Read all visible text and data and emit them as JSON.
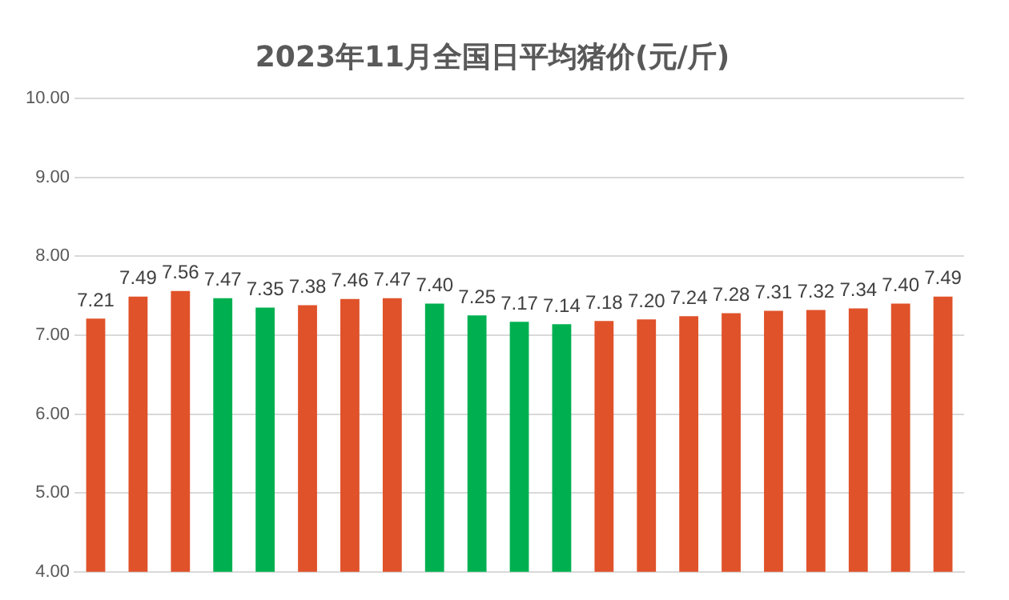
{
  "chart_data": {
    "type": "bar",
    "title": "2023年11月全国日平均猪价(元/斤)",
    "categories": [
      null,
      null,
      null,
      null,
      null,
      null,
      null,
      null,
      null,
      null,
      null,
      null,
      null,
      null,
      null,
      null,
      null,
      null,
      null,
      null,
      null
    ],
    "values": [
      7.21,
      7.49,
      7.56,
      7.47,
      7.35,
      7.38,
      7.46,
      7.47,
      7.4,
      7.25,
      7.17,
      7.14,
      7.18,
      7.2,
      7.24,
      7.28,
      7.31,
      7.32,
      7.34,
      7.4,
      7.49
    ],
    "colors": [
      "#e0522a",
      "#e0522a",
      "#e0522a",
      "#00b050",
      "#00b050",
      "#e0522a",
      "#e0522a",
      "#e0522a",
      "#00b050",
      "#00b050",
      "#00b050",
      "#00b050",
      "#e0522a",
      "#e0522a",
      "#e0522a",
      "#e0522a",
      "#e0522a",
      "#e0522a",
      "#e0522a",
      "#e0522a",
      "#e0522a"
    ],
    "ylim": [
      4,
      10
    ],
    "yticks": [
      {
        "value": 4,
        "label": "4.00"
      },
      {
        "value": 5,
        "label": "5.00"
      },
      {
        "value": 6,
        "label": "6.00"
      },
      {
        "value": 7,
        "label": "7.00"
      },
      {
        "value": 8,
        "label": "8.00"
      },
      {
        "value": 9,
        "label": "9.00"
      },
      {
        "value": 10,
        "label": "10.00"
      }
    ],
    "value_labels": [
      "7.21",
      "7.49",
      "7.56",
      "7.47",
      "7.35",
      "7.38",
      "7.46",
      "7.47",
      "7.40",
      "7.25",
      "7.17",
      "7.14",
      "7.18",
      "7.20",
      "7.24",
      "7.28",
      "7.31",
      "7.32",
      "7.34",
      "7.40",
      "7.49"
    ],
    "grid": "y",
    "legend": false
  }
}
